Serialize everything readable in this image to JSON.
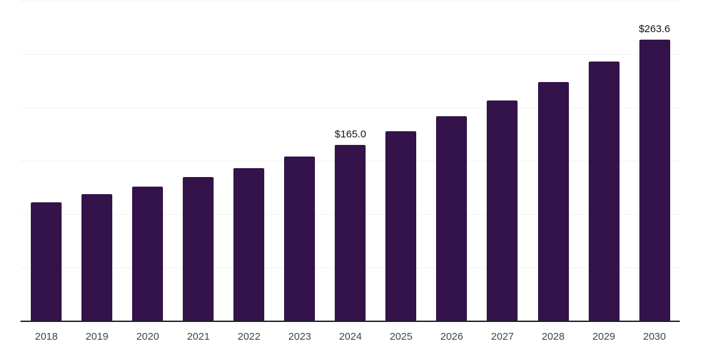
{
  "chart_data": {
    "type": "bar",
    "title": "",
    "xlabel": "",
    "ylabel": "",
    "categories": [
      "2018",
      "2019",
      "2020",
      "2021",
      "2022",
      "2023",
      "2024",
      "2025",
      "2026",
      "2027",
      "2028",
      "2029",
      "2030"
    ],
    "values": [
      110.9,
      118.5,
      125.4,
      134.3,
      142.9,
      154.0,
      165.0,
      177.6,
      191.9,
      206.4,
      223.7,
      242.9,
      263.6
    ],
    "value_labels": {
      "2024": "$165.0",
      "2030": "$263.6"
    },
    "ylim": [
      0,
      300
    ],
    "gridline_step": 50,
    "grid": "horizontal",
    "legend_position": "none",
    "colors": {
      "bar": "#331349",
      "axis": "#212121",
      "gridline": "#f2f2f2",
      "tick_label": "#444444",
      "value_label": "#111111",
      "background": "#ffffff"
    }
  }
}
